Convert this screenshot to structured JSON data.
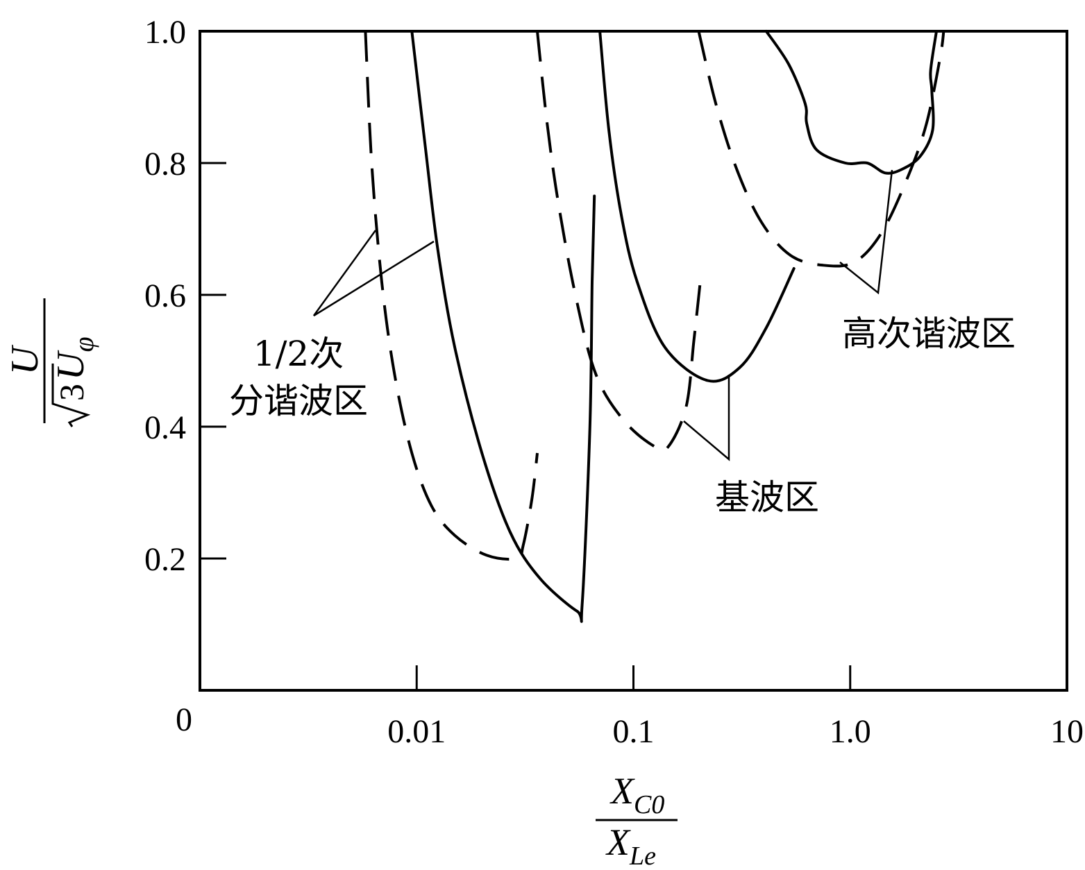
{
  "chart_data": {
    "type": "line",
    "x_scale": "log",
    "xlim": [
      0.001,
      10
    ],
    "ylim": [
      0,
      1.0
    ],
    "grid": false,
    "x_origin_label": "0",
    "x_ticks": [
      {
        "value": 0.01,
        "label": "0.01"
      },
      {
        "value": 0.1,
        "label": "0.1"
      },
      {
        "value": 1.0,
        "label": "1.0"
      },
      {
        "value": 10,
        "label": "10"
      }
    ],
    "y_ticks": [
      {
        "value": 0.2,
        "label": "0.2"
      },
      {
        "value": 0.4,
        "label": "0.4"
      },
      {
        "value": 0.6,
        "label": "0.6"
      },
      {
        "value": 0.8,
        "label": "0.8"
      },
      {
        "value": 1.0,
        "label": "1.0"
      }
    ],
    "xlabel": {
      "numerator": "X",
      "numerator_sub": "C0",
      "denominator": "X",
      "denominator_sub": "Le"
    },
    "ylabel": {
      "numerator": "U",
      "denominator_coef": "3",
      "denominator": "U",
      "denominator_sub": "φ"
    },
    "series": [
      {
        "style": "solid",
        "points": [
          [
            0.0095,
            1.0
          ],
          [
            0.011,
            0.82
          ],
          [
            0.0125,
            0.67
          ],
          [
            0.015,
            0.52
          ],
          [
            0.02,
            0.36
          ],
          [
            0.027,
            0.24
          ],
          [
            0.037,
            0.17
          ],
          [
            0.055,
            0.12
          ],
          [
            0.058,
            0.13
          ],
          [
            0.063,
            0.4
          ],
          [
            0.0645,
            0.62
          ],
          [
            0.066,
            0.75
          ]
        ]
      },
      {
        "style": "dashed",
        "points": [
          [
            0.0058,
            1.0
          ],
          [
            0.0062,
            0.8
          ],
          [
            0.0069,
            0.62
          ],
          [
            0.0079,
            0.48
          ],
          [
            0.0095,
            0.36
          ],
          [
            0.0117,
            0.28
          ],
          [
            0.015,
            0.235
          ],
          [
            0.021,
            0.205
          ],
          [
            0.029,
            0.2
          ],
          [
            0.031,
            0.22
          ],
          [
            0.034,
            0.29
          ],
          [
            0.036,
            0.36
          ]
        ]
      },
      {
        "style": "solid",
        "points": [
          [
            0.07,
            1.0
          ],
          [
            0.077,
            0.85
          ],
          [
            0.088,
            0.72
          ],
          [
            0.104,
            0.62
          ],
          [
            0.14,
            0.52
          ],
          [
            0.22,
            0.47
          ],
          [
            0.31,
            0.49
          ],
          [
            0.41,
            0.55
          ],
          [
            0.55,
            0.64
          ]
        ]
      },
      {
        "style": "dashed",
        "points": [
          [
            0.036,
            1.0
          ],
          [
            0.04,
            0.86
          ],
          [
            0.045,
            0.74
          ],
          [
            0.054,
            0.6
          ],
          [
            0.067,
            0.48
          ],
          [
            0.09,
            0.41
          ],
          [
            0.125,
            0.37
          ],
          [
            0.145,
            0.37
          ],
          [
            0.175,
            0.43
          ],
          [
            0.19,
            0.53
          ],
          [
            0.205,
            0.63
          ]
        ]
      },
      {
        "style": "solid",
        "points": [
          [
            0.41,
            1.0
          ],
          [
            0.52,
            0.95
          ],
          [
            0.62,
            0.89
          ],
          [
            0.63,
            0.86
          ],
          [
            0.7,
            0.82
          ],
          [
            0.95,
            0.8
          ],
          [
            1.2,
            0.8
          ],
          [
            1.45,
            0.785
          ],
          [
            1.72,
            0.79
          ],
          [
            2.1,
            0.81
          ],
          [
            2.4,
            0.85
          ],
          [
            2.38,
            0.91
          ],
          [
            2.35,
            0.94
          ],
          [
            2.5,
            1.0
          ]
        ]
      },
      {
        "style": "dashed",
        "points": [
          [
            0.2,
            1.0
          ],
          [
            0.24,
            0.89
          ],
          [
            0.3,
            0.79
          ],
          [
            0.39,
            0.71
          ],
          [
            0.53,
            0.66
          ],
          [
            0.75,
            0.645
          ],
          [
            1.05,
            0.65
          ],
          [
            1.4,
            0.695
          ],
          [
            1.85,
            0.78
          ],
          [
            2.25,
            0.86
          ],
          [
            2.6,
            0.96
          ],
          [
            2.7,
            1.0
          ]
        ]
      }
    ],
    "annotations": [
      {
        "text": "1/2次",
        "line2": "分谐波区"
      },
      {
        "text": "基波区"
      },
      {
        "text": "高次谐波区"
      }
    ]
  }
}
